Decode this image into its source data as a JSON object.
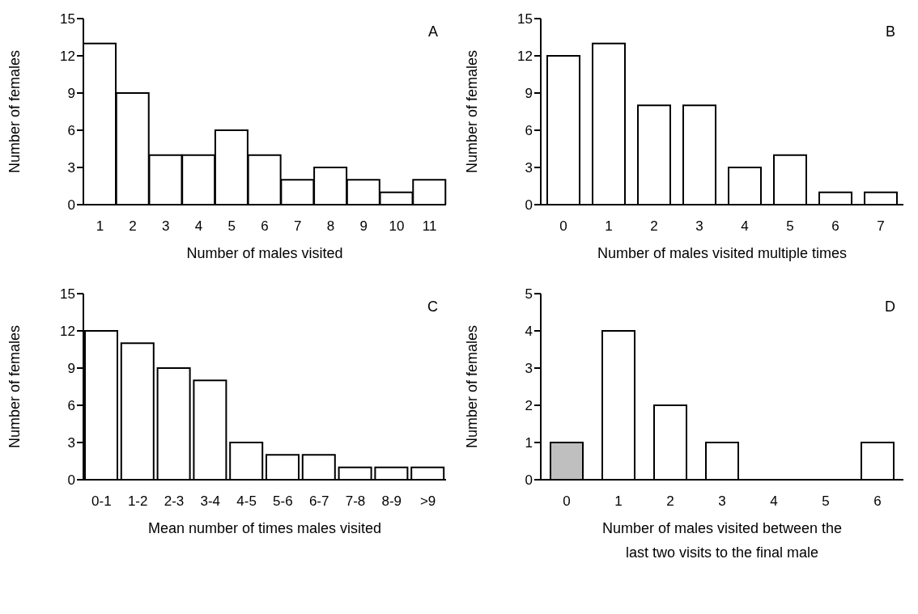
{
  "chart_data": [
    {
      "type": "bar",
      "categories": [
        "1",
        "2",
        "3",
        "4",
        "5",
        "6",
        "7",
        "8",
        "9",
        "10",
        "11"
      ],
      "values": [
        13,
        9,
        4,
        4,
        6,
        4,
        2,
        3,
        2,
        1,
        2
      ],
      "color": "#ffffff",
      "ylim": [
        0,
        15
      ],
      "yticks": [
        0,
        3,
        6,
        9,
        12,
        15
      ],
      "xlabel": "Number of males visited",
      "ylabel": "Number of females",
      "annotations": [
        "A"
      ]
    },
    {
      "type": "bar",
      "categories": [
        "0",
        "1",
        "2",
        "3",
        "4",
        "5",
        "6",
        "7"
      ],
      "values": [
        12,
        13,
        8,
        8,
        3,
        4,
        1,
        1
      ],
      "color": "#ffffff",
      "ylim": [
        0,
        15
      ],
      "yticks": [
        0,
        3,
        6,
        9,
        12,
        15
      ],
      "xlabel": "Number of males visited multiple times",
      "ylabel": "Number of females",
      "annotations": [
        "B"
      ]
    },
    {
      "type": "bar",
      "categories": [
        "0-1",
        "1-2",
        "2-3",
        "3-4",
        "4-5",
        "5-6",
        "6-7",
        "7-8",
        "8-9",
        ">9"
      ],
      "values": [
        12,
        11,
        9,
        8,
        3,
        2,
        2,
        1,
        1,
        1
      ],
      "color": "#ffffff",
      "ylim": [
        0,
        15
      ],
      "yticks": [
        0,
        3,
        6,
        9,
        12,
        15
      ],
      "xlabel": "Mean number of times males visited",
      "ylabel": "Number of females",
      "annotations": [
        "C"
      ]
    },
    {
      "type": "bar",
      "categories": [
        "0",
        "1",
        "2",
        "3",
        "4",
        "5",
        "6"
      ],
      "values": [
        1,
        4,
        2,
        1,
        0,
        0,
        1
      ],
      "colors": [
        "#bfbfbf",
        "#ffffff",
        "#ffffff",
        "#ffffff",
        "#ffffff",
        "#ffffff",
        "#ffffff"
      ],
      "ylim": [
        0,
        5
      ],
      "yticks": [
        0,
        1,
        2,
        3,
        4,
        5
      ],
      "xlabel": "Number of males visited between the\nlast two visits to the final male",
      "ylabel": "Number of females",
      "annotations": [
        "D"
      ]
    }
  ]
}
